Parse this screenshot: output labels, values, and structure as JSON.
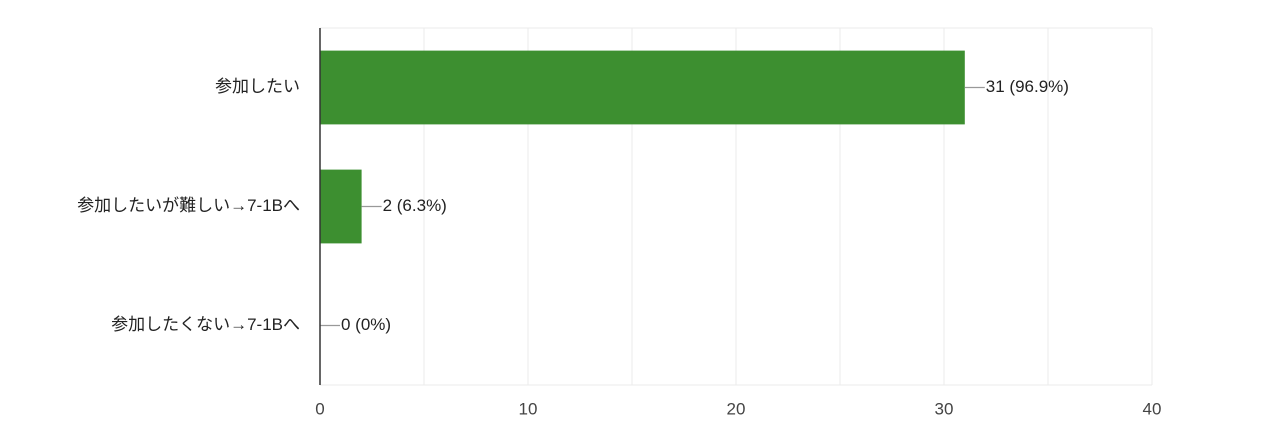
{
  "chart_data": {
    "type": "barh",
    "categories": [
      "参加したい",
      "参加したいが難しい→7-1Bへ",
      "参加したくない→7-1Bへ"
    ],
    "values": [
      31,
      2,
      0
    ],
    "value_labels": [
      "31 (96.9%)",
      "2 (6.3%)",
      "0 (0%)"
    ],
    "color": "#3d8f30",
    "xlim": [
      0,
      40
    ],
    "xticks": [
      0,
      10,
      20,
      30,
      40
    ],
    "minor_xticks": [
      5,
      15,
      25,
      35
    ],
    "grid": true
  }
}
